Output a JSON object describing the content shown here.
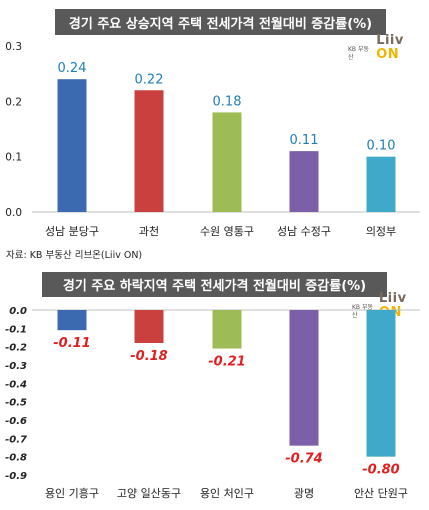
{
  "source_text": "자료: KB 부동산 리브온(Liiv ON)",
  "logo": {
    "kb_text": "KB 부동산",
    "liiv_text": "Liiv",
    "on_text": "ON"
  },
  "chart_data": [
    {
      "type": "bar",
      "title": "경기 주요 상승지역 주택 전세가격 전월대비 증감률(%)",
      "categories": [
        "성남 분당구",
        "과천",
        "수원 영통구",
        "성남 수정구",
        "의정부"
      ],
      "values": [
        0.24,
        0.22,
        0.18,
        0.11,
        0.1
      ],
      "value_labels": [
        "0.24",
        "0.22",
        "0.18",
        "0.11",
        "0.10"
      ],
      "colors": [
        "#3c6ab0",
        "#c9403e",
        "#9dbc55",
        "#7d5ea8",
        "#3fa9c9"
      ],
      "yticks": [
        "0.0",
        "0.1",
        "0.2",
        "0.3"
      ],
      "ylim": [
        0,
        0.3
      ],
      "label_color": "#1f7fb6"
    },
    {
      "type": "bar",
      "title": "경기 주요 하락지역 주택 전세가격 전월대비 증감률(%)",
      "categories": [
        "용인 기흥구",
        "고양 일산동구",
        "용인 처인구",
        "광명",
        "안산 단원구"
      ],
      "values": [
        -0.11,
        -0.18,
        -0.21,
        -0.74,
        -0.8
      ],
      "value_labels": [
        "-0.11",
        "-0.18",
        "-0.21",
        "-0.74",
        "-0.80"
      ],
      "colors": [
        "#3c6ab0",
        "#c9403e",
        "#9dbc55",
        "#7d5ea8",
        "#3fa9c9"
      ],
      "yticks": [
        "0.0",
        "-0.1",
        "-0.2",
        "-0.3",
        "-0.4",
        "-0.5",
        "-0.6",
        "-0.7",
        "-0.8",
        "-0.9"
      ],
      "ylim": [
        -0.9,
        0
      ],
      "label_color": "#e02020"
    }
  ]
}
